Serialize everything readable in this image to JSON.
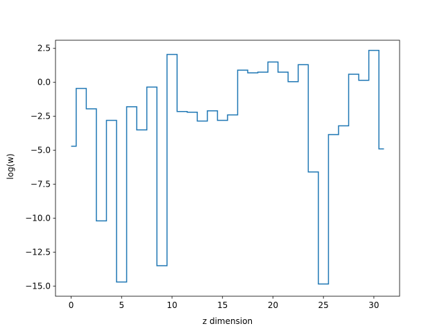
{
  "chart_data": {
    "type": "line",
    "drawstyle": "steps-mid",
    "title": "",
    "xlabel": "z dimension",
    "ylabel": "log(w)",
    "xlim": [
      -1.55,
      32.55
    ],
    "ylim": [
      -15.75,
      3.1
    ],
    "xticks": [
      0,
      5,
      10,
      15,
      20,
      25,
      30
    ],
    "xtick_labels": [
      "0",
      "5",
      "10",
      "15",
      "20",
      "25",
      "30"
    ],
    "yticks": [
      2.5,
      0,
      -2.5,
      -5,
      -7.5,
      -10,
      -12.5,
      -15
    ],
    "ytick_labels": [
      "2.5",
      "0.0",
      "−2.5",
      "−5.0",
      "−7.5",
      "−10.0",
      "−12.5",
      "−15.0"
    ],
    "grid": false,
    "series": [
      {
        "color": "#1f77b4",
        "x": [
          0,
          1,
          2,
          3,
          4,
          5,
          6,
          7,
          8,
          9,
          10,
          11,
          12,
          13,
          14,
          15,
          16,
          17,
          18,
          19,
          20,
          21,
          22,
          23,
          24,
          25,
          26,
          27,
          28,
          29,
          30,
          31
        ],
        "y": [
          -4.7,
          -0.45,
          -1.95,
          -10.2,
          -2.8,
          -14.7,
          -1.8,
          -3.5,
          -0.35,
          -13.5,
          2.05,
          -2.15,
          -2.2,
          -2.85,
          -2.1,
          -2.8,
          -2.4,
          0.9,
          0.7,
          0.75,
          1.5,
          0.75,
          0.05,
          1.3,
          -6.6,
          -14.85,
          -3.85,
          -3.2,
          0.6,
          0.15,
          2.35,
          -4.9
        ]
      }
    ]
  }
}
